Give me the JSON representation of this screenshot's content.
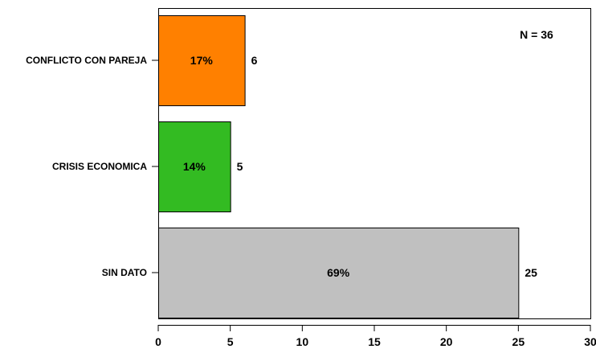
{
  "chart_data": {
    "type": "bar",
    "orientation": "horizontal",
    "categories": [
      "CONFLICTO CON PAREJA",
      "CRISIS ECONOMICA",
      "SIN DATO"
    ],
    "values": [
      6,
      5,
      25
    ],
    "percent_labels": [
      "17%",
      "14%",
      "69%"
    ],
    "value_labels": [
      "6",
      "5",
      "25"
    ],
    "colors": [
      "#ff8000",
      "#33bb22",
      "#c0c0c0"
    ],
    "xlim": [
      0,
      30
    ],
    "xticks": [
      0,
      5,
      10,
      15,
      20,
      25,
      30
    ],
    "annotation": "N = 36",
    "annotation_position": "top-right",
    "grid": false,
    "title": "",
    "xlabel": "",
    "ylabel": ""
  }
}
